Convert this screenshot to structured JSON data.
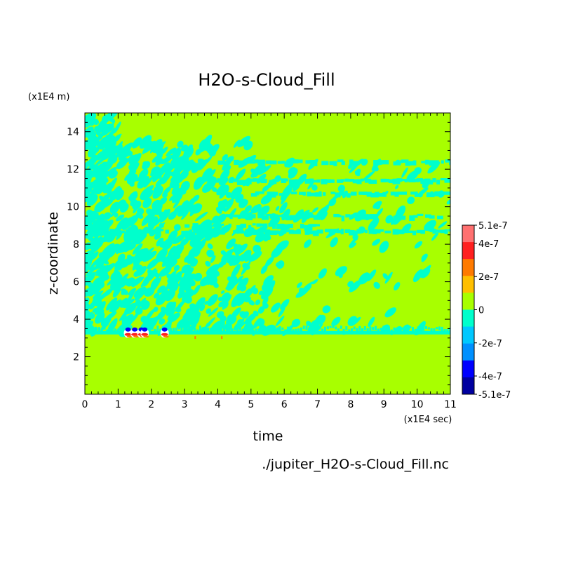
{
  "chart_data": {
    "type": "heatmap",
    "title": "H2O-s-Cloud_Fill",
    "xlabel": "time",
    "ylabel": "z-coordinate",
    "x_unit": "(x1E4 sec)",
    "y_unit": "(x1E4 m)",
    "source_file": "./jupiter_H2O-s-Cloud_Fill.nc",
    "xlim": [
      0,
      11
    ],
    "ylim": [
      0,
      15
    ],
    "x_ticks": [
      0,
      1,
      2,
      3,
      4,
      5,
      6,
      7,
      8,
      9,
      10,
      11
    ],
    "y_ticks": [
      2,
      4,
      6,
      8,
      10,
      12,
      14
    ],
    "colorbar": {
      "tick_labels": [
        "5.1e-7",
        "4e-7",
        "2e-7",
        "0",
        "-2e-7",
        "-4e-7",
        "-5.1e-7"
      ],
      "tick_values": [
        5.1e-07,
        4e-07,
        2e-07,
        0,
        -2e-07,
        -4e-07,
        -5.1e-07
      ],
      "range": [
        -5.1e-07,
        5.1e-07
      ],
      "colors_top_to_bottom": [
        "#ff7070",
        "#ff2020",
        "#ff7a00",
        "#ffbf00",
        "#a8ff00",
        "#00ffcc",
        "#00c8ff",
        "#0090ff",
        "#0000ff",
        "#0000a0"
      ]
    },
    "background_level_color": "#a8ff00",
    "negative_band_color": "#00ffcc",
    "data_summary": {
      "cloud_base_z": 3.3,
      "max_activity_z": 12.4,
      "strong_anomaly_times": [
        1.3,
        1.5,
        1.7,
        1.8,
        2.4
      ],
      "strong_anomaly_z": 3.3
    }
  }
}
